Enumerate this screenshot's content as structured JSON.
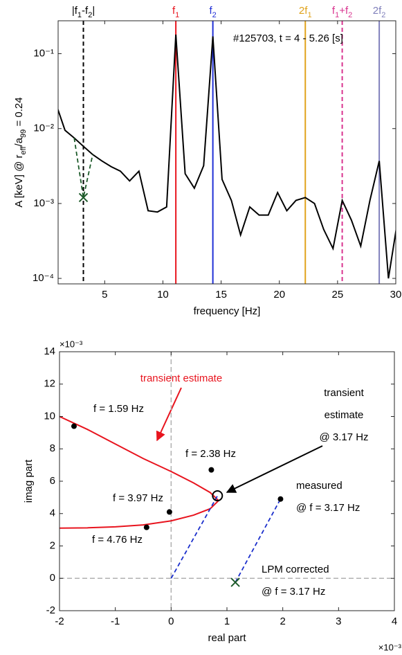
{
  "chart_data": [
    {
      "type": "line",
      "ylabel": [
        "A [keV] @ r",
        "eff",
        "/a",
        "99",
        " = 0.24"
      ],
      "xlabel": "frequency [Hz]",
      "annotation": "#125703, t = 4 - 5.26 [s]",
      "ylog": true,
      "xlim": [
        1,
        30
      ],
      "xticks": [
        5,
        10,
        15,
        20,
        25,
        30
      ],
      "ylim": [
        8.45e-05,
        0.275
      ],
      "yticks": [
        {
          "value": 0.0001,
          "label": "10⁻⁴"
        },
        {
          "value": 0.001,
          "label": "10⁻³"
        },
        {
          "value": 0.01,
          "label": "10⁻²"
        },
        {
          "value": 0.1,
          "label": "10⁻¹"
        }
      ],
      "x": [
        0.79,
        1.59,
        2.38,
        3.17,
        3.97,
        4.76,
        5.56,
        6.35,
        7.14,
        7.94,
        8.73,
        9.53,
        10.32,
        11.11,
        11.91,
        12.7,
        13.5,
        14.29,
        15.08,
        15.88,
        16.67,
        17.46,
        18.26,
        19.05,
        19.85,
        20.64,
        21.43,
        22.23,
        23.02,
        23.81,
        24.61,
        25.4,
        26.19,
        26.99,
        27.78,
        28.58,
        29.37,
        30.16
      ],
      "series": [
        {
          "color": "#000000",
          "values": [
            0.022,
            0.0095,
            0.0075,
            0.0058,
            0.0045,
            0.0037,
            0.0031,
            0.0027,
            0.002,
            0.0027,
            0.0008,
            0.00077,
            0.0009,
            0.18,
            0.0025,
            0.0016,
            0.0032,
            0.17,
            0.0021,
            0.0011,
            0.00038,
            0.0009,
            0.0007,
            0.0007,
            0.0014,
            0.0008,
            0.0011,
            0.0012,
            0.001,
            0.00045,
            0.00025,
            0.0011,
            0.0006,
            0.00027,
            0.0011,
            0.0037,
            0.0001,
            0.0006
          ]
        },
        {
          "color": "#1d5b2a",
          "dash": true,
          "x": [
            2.38,
            3.17,
            3.97
          ],
          "values": [
            0.0075,
            0.0012,
            0.0045
          ]
        },
        {
          "color": "#1d5b2a",
          "marker": "x",
          "x": [
            3.17
          ],
          "values": [
            0.0012
          ]
        }
      ],
      "vlines": [
        {
          "x": 3.17,
          "label": [
            "|f",
            "1",
            "-f",
            "2",
            "|"
          ],
          "color": "#000000",
          "dash": true
        },
        {
          "x": 11.11,
          "label": [
            "f",
            "1"
          ],
          "color": "#e8141e"
        },
        {
          "x": 14.29,
          "label": [
            "f",
            "2"
          ],
          "color": "#1f2ed6"
        },
        {
          "x": 22.23,
          "label": [
            "2f",
            "1"
          ],
          "color": "#e0a21a"
        },
        {
          "x": 25.4,
          "label": [
            "f",
            "1",
            "+f",
            "2"
          ],
          "color": "#d9338f",
          "dash": true
        },
        {
          "x": 28.58,
          "label": [
            "2f",
            "2"
          ],
          "color": "#8080bb"
        }
      ]
    },
    {
      "type": "scatter",
      "xlabel": "real part",
      "ylabel": "imag part",
      "xscale_label": "×10⁻³",
      "yscale_label": "×10⁻³",
      "xlim": [
        -2,
        4
      ],
      "xticks": [
        -2,
        -1,
        0,
        1,
        2,
        3,
        4
      ],
      "ylim": [
        -2,
        14
      ],
      "yticks": [
        -2,
        0,
        2,
        4,
        6,
        8,
        10,
        12,
        14
      ],
      "zero_lines": true,
      "series": [
        {
          "color": "#e8141e",
          "line": true,
          "x": [
            -2,
            -1.5,
            -1,
            -0.5,
            0,
            0.4,
            0.7,
            0.85,
            0.7,
            0.4,
            0,
            -0.5,
            -1,
            -1.5,
            -2
          ],
          "values": [
            10,
            9.2,
            8.3,
            7.4,
            6.6,
            5.9,
            5.3,
            4.8,
            4.3,
            3.9,
            3.55,
            3.3,
            3.18,
            3.12,
            3.1
          ]
        },
        {
          "color": "#1a2ecc",
          "line": true,
          "dash": true,
          "x": [
            0,
            0.83
          ],
          "values": [
            0,
            5.1
          ]
        },
        {
          "color": "#1a2ecc",
          "line": true,
          "dash": true,
          "x": [
            1.15,
            1.96
          ],
          "values": [
            -0.25,
            4.9
          ]
        },
        {
          "color": "#000000",
          "marker": "dot",
          "x": [
            -1.74,
            0.72,
            -0.03,
            -0.44,
            1.96
          ],
          "values": [
            9.4,
            6.7,
            4.1,
            3.15,
            4.9
          ]
        },
        {
          "color": "#000000",
          "marker": "circle",
          "x": [
            0.83
          ],
          "values": [
            5.1
          ]
        },
        {
          "color": "#1d5b2a",
          "marker": "x",
          "x": [
            1.15
          ],
          "values": [
            -0.25
          ]
        }
      ],
      "annotations": [
        {
          "text": [
            "transient estimate"
          ],
          "color": "#e8141e"
        },
        {
          "text": [
            "f = 1.59 Hz"
          ]
        },
        {
          "text": [
            "f = 2.38 Hz"
          ]
        },
        {
          "text": [
            "f = 3.97 Hz"
          ]
        },
        {
          "text": [
            "f = 4.76 Hz"
          ]
        },
        {
          "text": [
            "transient",
            "estimate",
            "@ 3.17 Hz"
          ]
        },
        {
          "text": [
            "measured",
            "@ f = 3.17 Hz"
          ]
        },
        {
          "text": [
            "LPM corrected",
            "@ f = 3.17 Hz"
          ]
        }
      ]
    }
  ]
}
